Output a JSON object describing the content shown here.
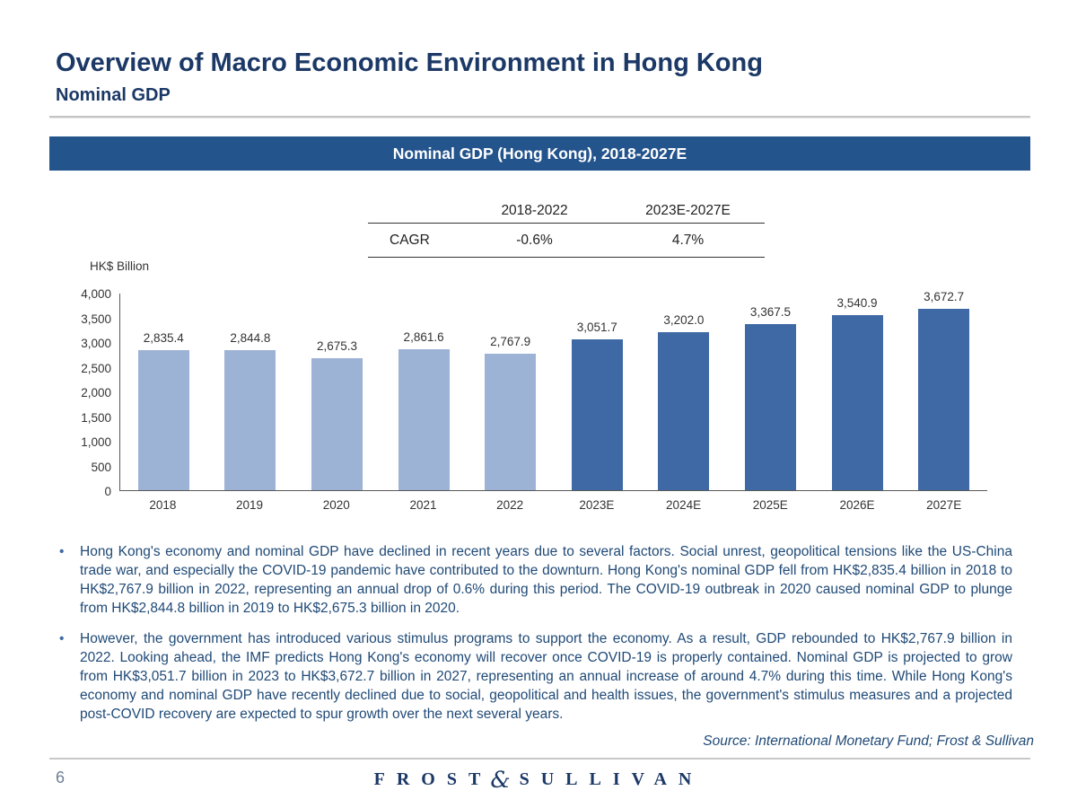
{
  "slide": {
    "title": "Overview of Macro Economic Environment in Hong Kong",
    "subtitle": "Nominal GDP",
    "page_number": "6",
    "source": "Source: International Monetary Fund; Frost & Sullivan",
    "logo": {
      "left": "FROST",
      "amp": "&",
      "right": "SULLIVAN"
    }
  },
  "banner": {
    "title": "Nominal GDP (Hong Kong), 2018-2027E"
  },
  "cagr": {
    "row_label": "CAGR",
    "periods": [
      "2018-2022",
      "2023E-2027E"
    ],
    "values": [
      "-0.6%",
      "4.7%"
    ]
  },
  "chart_data": {
    "type": "bar",
    "title": "Nominal GDP (Hong Kong), 2018-2027E",
    "xlabel": "",
    "ylabel": "HK$ Billion",
    "ylim": [
      0,
      4000
    ],
    "grid": false,
    "legend_position": "none",
    "yticks": [
      0,
      500,
      1000,
      1500,
      2000,
      2500,
      3000,
      3500,
      4000
    ],
    "ytick_labels": [
      "0",
      "500",
      "1,000",
      "1,500",
      "2,000",
      "2,500",
      "3,000",
      "3,500",
      "4,000"
    ],
    "categories": [
      "2018",
      "2019",
      "2020",
      "2021",
      "2022",
      "2023E",
      "2024E",
      "2025E",
      "2026E",
      "2027E"
    ],
    "values": [
      2835.4,
      2844.8,
      2675.3,
      2861.6,
      2767.9,
      3051.7,
      3202.0,
      3367.5,
      3540.9,
      3672.7
    ],
    "value_labels": [
      "2,835.4",
      "2,844.8",
      "2,675.3",
      "2,861.6",
      "2,767.9",
      "3,051.7",
      "3,202.0",
      "3,367.5",
      "3,540.9",
      "3,672.7"
    ],
    "split_index": 5,
    "colors": {
      "historical": "#9DB3D6",
      "estimate": "#3E69A4"
    }
  },
  "bullets": [
    "Hong Kong's economy and nominal GDP have declined in recent years due to several factors. Social unrest, geopolitical tensions like the US-China trade war, and especially the COVID-19 pandemic have contributed to the downturn. Hong Kong's nominal GDP fell from HK$2,835.4 billion in 2018 to HK$2,767.9 billion in 2022, representing an annual drop of 0.6% during this period. The COVID-19 outbreak in 2020 caused nominal GDP to plunge from HK$2,844.8 billion in 2019 to HK$2,675.3 billion in 2020.",
    "However, the government has introduced various stimulus programs to support the economy. As a result, GDP rebounded to HK$2,767.9 billion in 2022. Looking ahead, the IMF predicts Hong Kong's economy will recover once COVID-19 is properly contained. Nominal GDP is projected to grow from HK$3,051.7 billion in 2023 to HK$3,672.7 billion in 2027, representing an annual increase of around 4.7% during this time. While Hong Kong's economy and nominal GDP have recently declined due to social, geopolitical and health issues, the government's stimulus measures and a projected post-COVID recovery are expected to spur growth over the next several years."
  ]
}
